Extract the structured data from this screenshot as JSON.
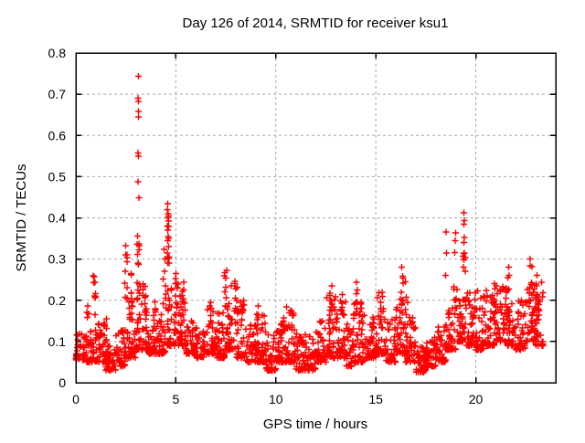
{
  "chart_data": {
    "type": "scatter",
    "title": "Day 126 of 2014, SRMTID for receiver ksu1",
    "xlabel": "GPS time / hours",
    "ylabel": "SRMTID / TECUs",
    "xlim": [
      0,
      24
    ],
    "ylim": [
      0,
      0.8
    ],
    "xtick_values": [
      0,
      5,
      10,
      15,
      20
    ],
    "xtick_labels": [
      "0",
      "5",
      "10",
      "15",
      "20"
    ],
    "ytick_values": [
      0,
      0.1,
      0.2,
      0.3,
      0.4,
      0.5,
      0.6,
      0.7,
      0.8
    ],
    "ytick_labels": [
      "0",
      "0.1",
      "0.2",
      "0.3",
      "0.4",
      "0.5",
      "0.6",
      "0.7",
      "0.8"
    ],
    "grid": {
      "show": true,
      "style": "dashed",
      "color": "#a8a8a8"
    },
    "border_color": "#000000",
    "background_color": "#ffffff",
    "legend": "none",
    "marker": {
      "shape": "plus",
      "color": "#ff0000",
      "size": 7,
      "stroke_width": 1.4
    },
    "seed": 20140126,
    "band_exponent": 2.2,
    "baseline_bins": [
      [
        0.0,
        0.5,
        40,
        0.055,
        0.125
      ],
      [
        0.5,
        1.0,
        40,
        0.05,
        0.13
      ],
      [
        1.0,
        1.5,
        40,
        0.05,
        0.145
      ],
      [
        1.5,
        2.0,
        40,
        0.03,
        0.105
      ],
      [
        2.0,
        2.5,
        40,
        0.04,
        0.13
      ],
      [
        2.5,
        3.0,
        40,
        0.06,
        0.22
      ],
      [
        3.0,
        3.5,
        40,
        0.08,
        0.24
      ],
      [
        3.5,
        4.0,
        40,
        0.07,
        0.2
      ],
      [
        4.0,
        4.5,
        40,
        0.07,
        0.17
      ],
      [
        4.5,
        5.0,
        40,
        0.09,
        0.25
      ],
      [
        5.0,
        5.5,
        40,
        0.09,
        0.24
      ],
      [
        5.5,
        6.0,
        40,
        0.07,
        0.16
      ],
      [
        6.0,
        6.5,
        40,
        0.06,
        0.15
      ],
      [
        6.5,
        7.0,
        40,
        0.07,
        0.19
      ],
      [
        7.0,
        7.5,
        40,
        0.06,
        0.17
      ],
      [
        7.5,
        8.0,
        40,
        0.08,
        0.24
      ],
      [
        8.0,
        8.5,
        40,
        0.06,
        0.2
      ],
      [
        8.5,
        9.0,
        40,
        0.05,
        0.15
      ],
      [
        9.0,
        9.5,
        40,
        0.05,
        0.17
      ],
      [
        9.5,
        10.0,
        40,
        0.03,
        0.12
      ],
      [
        10.0,
        10.5,
        40,
        0.05,
        0.16
      ],
      [
        10.5,
        11.0,
        40,
        0.05,
        0.18
      ],
      [
        11.0,
        11.5,
        40,
        0.03,
        0.12
      ],
      [
        11.5,
        12.0,
        40,
        0.03,
        0.12
      ],
      [
        12.0,
        12.5,
        40,
        0.05,
        0.15
      ],
      [
        12.5,
        13.0,
        40,
        0.06,
        0.21
      ],
      [
        13.0,
        13.5,
        40,
        0.06,
        0.2
      ],
      [
        13.5,
        14.0,
        40,
        0.04,
        0.17
      ],
      [
        14.0,
        14.5,
        40,
        0.05,
        0.2
      ],
      [
        14.5,
        15.0,
        40,
        0.06,
        0.16
      ],
      [
        15.0,
        15.5,
        40,
        0.07,
        0.21
      ],
      [
        15.5,
        16.0,
        40,
        0.05,
        0.16
      ],
      [
        16.0,
        16.5,
        40,
        0.07,
        0.22
      ],
      [
        16.5,
        17.0,
        40,
        0.05,
        0.17
      ],
      [
        17.0,
        17.5,
        40,
        0.025,
        0.09
      ],
      [
        17.5,
        18.0,
        40,
        0.04,
        0.12
      ],
      [
        18.0,
        18.5,
        40,
        0.05,
        0.14
      ],
      [
        18.5,
        19.0,
        40,
        0.08,
        0.2
      ],
      [
        19.0,
        19.5,
        40,
        0.1,
        0.25
      ],
      [
        19.5,
        20.0,
        40,
        0.09,
        0.22
      ],
      [
        20.0,
        20.5,
        40,
        0.08,
        0.21
      ],
      [
        20.5,
        21.0,
        40,
        0.09,
        0.23
      ],
      [
        21.0,
        21.5,
        40,
        0.1,
        0.24
      ],
      [
        21.5,
        22.0,
        40,
        0.09,
        0.22
      ],
      [
        22.0,
        22.5,
        40,
        0.08,
        0.2
      ],
      [
        22.5,
        23.0,
        40,
        0.1,
        0.24
      ],
      [
        23.0,
        23.4,
        35,
        0.09,
        0.25
      ]
    ],
    "spike_columns": [
      [
        0.6,
        0.05,
        4,
        0.13,
        0.2
      ],
      [
        0.95,
        0.08,
        9,
        0.15,
        0.26
      ],
      [
        1.45,
        0.08,
        5,
        0.125,
        0.158
      ],
      [
        2.5,
        0.07,
        8,
        0.18,
        0.335
      ],
      [
        2.75,
        0.06,
        7,
        0.15,
        0.28
      ],
      [
        3.12,
        0.07,
        14,
        0.2,
        0.36
      ],
      [
        3.5,
        0.06,
        6,
        0.17,
        0.253
      ],
      [
        3.95,
        0.05,
        4,
        0.15,
        0.205
      ],
      [
        4.45,
        0.08,
        6,
        0.18,
        0.28
      ],
      [
        4.62,
        0.06,
        12,
        0.27,
        0.42
      ],
      [
        5.05,
        0.08,
        8,
        0.17,
        0.265
      ],
      [
        5.35,
        0.08,
        7,
        0.16,
        0.26
      ],
      [
        6.75,
        0.1,
        5,
        0.14,
        0.196
      ],
      [
        7.5,
        0.07,
        9,
        0.17,
        0.278
      ],
      [
        8.0,
        0.07,
        7,
        0.16,
        0.26
      ],
      [
        8.35,
        0.06,
        4,
        0.14,
        0.205
      ],
      [
        9.1,
        0.08,
        5,
        0.13,
        0.186
      ],
      [
        10.45,
        0.15,
        7,
        0.13,
        0.195
      ],
      [
        10.8,
        0.1,
        5,
        0.12,
        0.19
      ],
      [
        12.75,
        0.08,
        8,
        0.16,
        0.24
      ],
      [
        13.3,
        0.07,
        6,
        0.15,
        0.238
      ],
      [
        14.0,
        0.08,
        8,
        0.16,
        0.25
      ],
      [
        15.25,
        0.1,
        6,
        0.14,
        0.22
      ],
      [
        16.32,
        0.06,
        8,
        0.17,
        0.28
      ],
      [
        16.55,
        0.07,
        5,
        0.15,
        0.26
      ],
      [
        18.9,
        0.1,
        6,
        0.15,
        0.24
      ],
      [
        19.0,
        0.05,
        3,
        0.3,
        0.385
      ],
      [
        19.42,
        0.07,
        10,
        0.2,
        0.33
      ],
      [
        20.0,
        0.1,
        6,
        0.15,
        0.245
      ],
      [
        20.9,
        0.08,
        6,
        0.16,
        0.25
      ],
      [
        21.6,
        0.07,
        8,
        0.17,
        0.285
      ],
      [
        22.75,
        0.07,
        8,
        0.17,
        0.3
      ],
      [
        23.1,
        0.07,
        6,
        0.16,
        0.265
      ]
    ],
    "outlier_points": [
      [
        3.13,
        0.744
      ],
      [
        3.11,
        0.69
      ],
      [
        3.13,
        0.683
      ],
      [
        3.12,
        0.658
      ],
      [
        3.14,
        0.645
      ],
      [
        3.1,
        0.557
      ],
      [
        3.12,
        0.55
      ],
      [
        3.11,
        0.487
      ],
      [
        3.16,
        0.449
      ],
      [
        4.6,
        0.434
      ],
      [
        4.58,
        0.42
      ],
      [
        4.62,
        0.41
      ],
      [
        4.6,
        0.4
      ],
      [
        4.63,
        0.392
      ],
      [
        4.59,
        0.37
      ],
      [
        4.61,
        0.355
      ],
      [
        4.6,
        0.345
      ],
      [
        4.4,
        0.324
      ],
      [
        4.45,
        0.3
      ],
      [
        2.48,
        0.332
      ],
      [
        2.5,
        0.31
      ],
      [
        18.52,
        0.366
      ],
      [
        18.53,
        0.315
      ],
      [
        18.5,
        0.26
      ],
      [
        19.4,
        0.412
      ],
      [
        19.43,
        0.393
      ],
      [
        19.41,
        0.385
      ],
      [
        19.42,
        0.352
      ],
      [
        19.4,
        0.34
      ],
      [
        16.3,
        0.28
      ],
      [
        22.72,
        0.3
      ]
    ]
  }
}
